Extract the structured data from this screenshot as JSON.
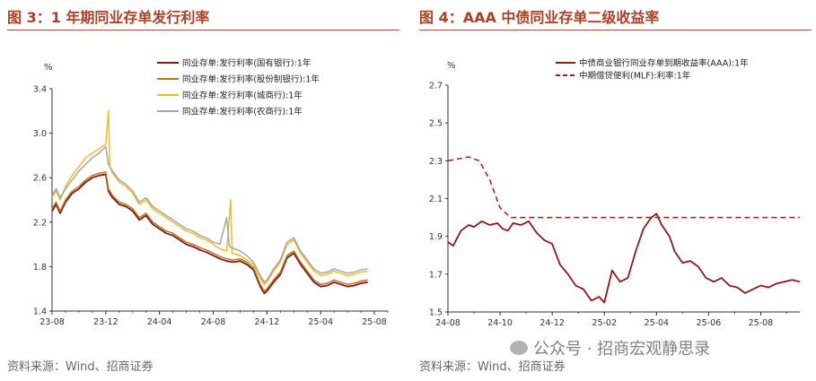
{
  "left": {
    "title": "图 3：1 年期同业存单发行利率",
    "source": "资料来源：Wind、招商证券",
    "chart_data": {
      "type": "line",
      "ylabel": "%",
      "ylim": [
        1.4,
        3.4
      ],
      "yticks": [
        "1.4",
        "1.8",
        "2.2",
        "2.6",
        "3.0",
        "3.4"
      ],
      "xticks": [
        "23-08",
        "23-12",
        "24-04",
        "24-08",
        "24-12",
        "25-04",
        "25-08"
      ],
      "x_range_months": [
        "2023-08",
        "2025-10"
      ],
      "legend_position": "top-right",
      "series": [
        {
          "name": "同业存单:发行利率(国有银行):1年",
          "color": "#7b1a14",
          "values": [
            [
              0,
              2.3
            ],
            [
              0.3,
              2.36
            ],
            [
              0.6,
              2.28
            ],
            [
              1,
              2.38
            ],
            [
              1.5,
              2.46
            ],
            [
              2,
              2.5
            ],
            [
              2.5,
              2.56
            ],
            [
              3,
              2.6
            ],
            [
              3.5,
              2.62
            ],
            [
              4,
              2.63
            ],
            [
              4.2,
              2.48
            ],
            [
              4.5,
              2.42
            ],
            [
              5,
              2.36
            ],
            [
              5.5,
              2.34
            ],
            [
              6,
              2.3
            ],
            [
              6.5,
              2.22
            ],
            [
              7,
              2.26
            ],
            [
              7.5,
              2.18
            ],
            [
              8,
              2.14
            ],
            [
              8.5,
              2.1
            ],
            [
              9,
              2.08
            ],
            [
              9.5,
              2.04
            ],
            [
              10,
              2.0
            ],
            [
              10.5,
              1.98
            ],
            [
              11,
              1.95
            ],
            [
              11.5,
              1.93
            ],
            [
              12,
              1.9
            ],
            [
              12.5,
              1.87
            ],
            [
              13,
              1.85
            ],
            [
              13.5,
              1.84
            ],
            [
              14,
              1.85
            ],
            [
              14.5,
              1.82
            ],
            [
              15,
              1.77
            ],
            [
              15.5,
              1.62
            ],
            [
              15.8,
              1.56
            ],
            [
              16,
              1.58
            ],
            [
              16.5,
              1.66
            ],
            [
              17,
              1.73
            ],
            [
              17.5,
              1.88
            ],
            [
              18,
              1.92
            ],
            [
              18.5,
              1.82
            ],
            [
              19,
              1.74
            ],
            [
              19.5,
              1.66
            ],
            [
              20,
              1.62
            ],
            [
              20.5,
              1.63
            ],
            [
              21,
              1.66
            ],
            [
              21.5,
              1.64
            ],
            [
              22,
              1.62
            ],
            [
              22.5,
              1.63
            ],
            [
              23,
              1.65
            ],
            [
              23.5,
              1.66
            ]
          ]
        },
        {
          "name": "同业存单:发行利率(股份制银行):1年",
          "color": "#b8761a",
          "values": [
            [
              0,
              2.32
            ],
            [
              0.3,
              2.38
            ],
            [
              0.6,
              2.3
            ],
            [
              1,
              2.4
            ],
            [
              1.5,
              2.48
            ],
            [
              2,
              2.52
            ],
            [
              2.5,
              2.58
            ],
            [
              3,
              2.62
            ],
            [
              3.5,
              2.64
            ],
            [
              4,
              2.65
            ],
            [
              4.2,
              2.5
            ],
            [
              4.5,
              2.44
            ],
            [
              5,
              2.38
            ],
            [
              5.5,
              2.36
            ],
            [
              6,
              2.32
            ],
            [
              6.5,
              2.24
            ],
            [
              7,
              2.28
            ],
            [
              7.5,
              2.2
            ],
            [
              8,
              2.16
            ],
            [
              8.5,
              2.12
            ],
            [
              9,
              2.1
            ],
            [
              9.5,
              2.06
            ],
            [
              10,
              2.02
            ],
            [
              10.5,
              2.0
            ],
            [
              11,
              1.97
            ],
            [
              11.5,
              1.95
            ],
            [
              12,
              1.92
            ],
            [
              12.5,
              1.89
            ],
            [
              13,
              1.87
            ],
            [
              13.5,
              1.86
            ],
            [
              14,
              1.87
            ],
            [
              14.5,
              1.84
            ],
            [
              15,
              1.79
            ],
            [
              15.5,
              1.64
            ],
            [
              15.8,
              1.58
            ],
            [
              16,
              1.6
            ],
            [
              16.5,
              1.68
            ],
            [
              17,
              1.75
            ],
            [
              17.5,
              1.9
            ],
            [
              18,
              1.94
            ],
            [
              18.5,
              1.84
            ],
            [
              19,
              1.76
            ],
            [
              19.5,
              1.68
            ],
            [
              20,
              1.64
            ],
            [
              20.5,
              1.65
            ],
            [
              21,
              1.68
            ],
            [
              21.5,
              1.66
            ],
            [
              22,
              1.64
            ],
            [
              22.5,
              1.65
            ],
            [
              23,
              1.67
            ],
            [
              23.5,
              1.68
            ]
          ]
        },
        {
          "name": "同业存单:发行利率(城商行):1年",
          "color": "#f0bb22",
          "values": [
            [
              0,
              2.42
            ],
            [
              0.3,
              2.48
            ],
            [
              0.6,
              2.4
            ],
            [
              1,
              2.52
            ],
            [
              1.5,
              2.62
            ],
            [
              2,
              2.7
            ],
            [
              2.5,
              2.78
            ],
            [
              3,
              2.82
            ],
            [
              3.5,
              2.86
            ],
            [
              4,
              2.9
            ],
            [
              4.2,
              3.2
            ],
            [
              4.3,
              2.7
            ],
            [
              4.5,
              2.64
            ],
            [
              5,
              2.56
            ],
            [
              5.5,
              2.52
            ],
            [
              6,
              2.46
            ],
            [
              6.5,
              2.36
            ],
            [
              7,
              2.4
            ],
            [
              7.5,
              2.32
            ],
            [
              8,
              2.28
            ],
            [
              8.5,
              2.24
            ],
            [
              9,
              2.2
            ],
            [
              9.5,
              2.16
            ],
            [
              10,
              2.12
            ],
            [
              10.5,
              2.1
            ],
            [
              11,
              2.06
            ],
            [
              11.5,
              2.04
            ],
            [
              12,
              2.0
            ],
            [
              12.5,
              1.96
            ],
            [
              13,
              1.94
            ],
            [
              13.3,
              2.4
            ],
            [
              13.4,
              1.92
            ],
            [
              14,
              1.9
            ],
            [
              14.5,
              1.86
            ],
            [
              15,
              1.82
            ],
            [
              15.5,
              1.7
            ],
            [
              15.8,
              1.64
            ],
            [
              16,
              1.66
            ],
            [
              16.5,
              1.76
            ],
            [
              17,
              1.84
            ],
            [
              17.5,
              2.0
            ],
            [
              18,
              2.04
            ],
            [
              18.5,
              1.92
            ],
            [
              19,
              1.84
            ],
            [
              19.5,
              1.76
            ],
            [
              20,
              1.72
            ],
            [
              20.5,
              1.73
            ],
            [
              21,
              1.76
            ],
            [
              21.5,
              1.74
            ],
            [
              22,
              1.72
            ],
            [
              22.5,
              1.73
            ],
            [
              23,
              1.75
            ],
            [
              23.5,
              1.76
            ]
          ]
        },
        {
          "name": "同业存单:发行利率(农商行):1年",
          "color": "#a6a6a6",
          "values": [
            [
              0,
              2.44
            ],
            [
              0.3,
              2.5
            ],
            [
              0.6,
              2.42
            ],
            [
              1,
              2.5
            ],
            [
              1.5,
              2.58
            ],
            [
              2,
              2.66
            ],
            [
              2.5,
              2.72
            ],
            [
              3,
              2.78
            ],
            [
              3.5,
              2.82
            ],
            [
              4,
              2.88
            ],
            [
              4.2,
              2.72
            ],
            [
              4.5,
              2.66
            ],
            [
              5,
              2.58
            ],
            [
              5.5,
              2.54
            ],
            [
              6,
              2.48
            ],
            [
              6.5,
              2.38
            ],
            [
              7,
              2.42
            ],
            [
              7.5,
              2.34
            ],
            [
              8,
              2.3
            ],
            [
              8.5,
              2.26
            ],
            [
              9,
              2.22
            ],
            [
              9.5,
              2.18
            ],
            [
              10,
              2.14
            ],
            [
              10.5,
              2.12
            ],
            [
              11,
              2.08
            ],
            [
              11.5,
              2.06
            ],
            [
              12,
              2.02
            ],
            [
              12.5,
              2.0
            ],
            [
              13,
              2.24
            ],
            [
              13.2,
              1.98
            ],
            [
              14,
              1.94
            ],
            [
              14.5,
              1.9
            ],
            [
              15,
              1.84
            ],
            [
              15.5,
              1.72
            ],
            [
              15.8,
              1.66
            ],
            [
              16,
              1.68
            ],
            [
              16.5,
              1.78
            ],
            [
              17,
              1.86
            ],
            [
              17.5,
              2.02
            ],
            [
              18,
              2.06
            ],
            [
              18.5,
              1.94
            ],
            [
              19,
              1.86
            ],
            [
              19.5,
              1.78
            ],
            [
              20,
              1.74
            ],
            [
              20.5,
              1.75
            ],
            [
              21,
              1.78
            ],
            [
              21.5,
              1.76
            ],
            [
              22,
              1.74
            ],
            [
              22.5,
              1.75
            ],
            [
              23,
              1.77
            ],
            [
              23.5,
              1.78
            ]
          ]
        }
      ]
    }
  },
  "right": {
    "title": "图 4：AAA 中债同业存单二级收益率",
    "source": "资料来源：Wind、招商证券",
    "chart_data": {
      "type": "line",
      "ylabel": "%",
      "ylim": [
        1.5,
        2.7
      ],
      "yticks": [
        "1.5",
        "1.7",
        "1.9",
        "2.1",
        "2.3",
        "2.5",
        "2.7"
      ],
      "xticks": [
        "24-08",
        "24-10",
        "24-12",
        "25-02",
        "25-04",
        "25-06",
        "25-08"
      ],
      "x_range_months": [
        "2024-08",
        "2025-09"
      ],
      "legend_position": "top-center",
      "series": [
        {
          "name": "中债商业银行同业存单到期收益率(AAA):1年",
          "color": "#8b1a1a",
          "dash": false,
          "values": [
            [
              0,
              1.87
            ],
            [
              0.2,
              1.85
            ],
            [
              0.5,
              1.93
            ],
            [
              0.8,
              1.96
            ],
            [
              1,
              1.95
            ],
            [
              1.3,
              1.98
            ],
            [
              1.6,
              1.96
            ],
            [
              1.9,
              1.97
            ],
            [
              2.1,
              1.94
            ],
            [
              2.3,
              1.93
            ],
            [
              2.5,
              1.97
            ],
            [
              2.8,
              1.96
            ],
            [
              3.1,
              1.98
            ],
            [
              3.4,
              1.92
            ],
            [
              3.7,
              1.88
            ],
            [
              4,
              1.86
            ],
            [
              4.3,
              1.75
            ],
            [
              4.6,
              1.7
            ],
            [
              4.9,
              1.64
            ],
            [
              5.2,
              1.62
            ],
            [
              5.5,
              1.56
            ],
            [
              5.8,
              1.58
            ],
            [
              6,
              1.55
            ],
            [
              6.3,
              1.72
            ],
            [
              6.6,
              1.66
            ],
            [
              6.9,
              1.68
            ],
            [
              7.2,
              1.82
            ],
            [
              7.5,
              1.94
            ],
            [
              7.8,
              2.0
            ],
            [
              8,
              2.02
            ],
            [
              8.2,
              1.96
            ],
            [
              8.5,
              1.9
            ],
            [
              8.7,
              1.82
            ],
            [
              9,
              1.76
            ],
            [
              9.3,
              1.77
            ],
            [
              9.6,
              1.74
            ],
            [
              9.9,
              1.68
            ],
            [
              10.2,
              1.66
            ],
            [
              10.5,
              1.68
            ],
            [
              10.8,
              1.64
            ],
            [
              11.1,
              1.63
            ],
            [
              11.4,
              1.6
            ],
            [
              11.7,
              1.62
            ],
            [
              12,
              1.64
            ],
            [
              12.3,
              1.63
            ],
            [
              12.6,
              1.65
            ],
            [
              12.9,
              1.66
            ],
            [
              13.2,
              1.67
            ],
            [
              13.5,
              1.66
            ]
          ]
        },
        {
          "name": "中期借贷便利(MLF):利率:1年",
          "color": "#b31515",
          "dash": true,
          "values": [
            [
              0,
              2.3
            ],
            [
              0.8,
              2.32
            ],
            [
              1.2,
              2.3
            ],
            [
              1.6,
              2.2
            ],
            [
              2.0,
              2.05
            ],
            [
              2.4,
              2.0
            ],
            [
              2.8,
              2.0
            ],
            [
              3.0,
              2.0
            ],
            [
              13.5,
              2.0
            ]
          ]
        }
      ]
    }
  },
  "watermark": "公众号 · 招商宏观静思录"
}
